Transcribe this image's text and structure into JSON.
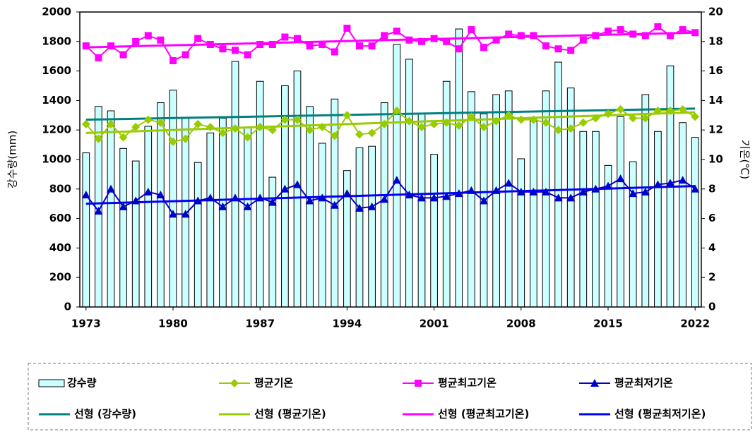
{
  "chart_data": {
    "type": "bar-line",
    "x": [
      1973,
      1974,
      1975,
      1976,
      1977,
      1978,
      1979,
      1980,
      1981,
      1982,
      1983,
      1984,
      1985,
      1986,
      1987,
      1988,
      1989,
      1990,
      1991,
      1992,
      1993,
      1994,
      1995,
      1996,
      1997,
      1998,
      1999,
      2000,
      2001,
      2002,
      2003,
      2004,
      2005,
      2006,
      2007,
      2008,
      2009,
      2010,
      2011,
      2012,
      2013,
      2014,
      2015,
      2016,
      2017,
      2018,
      2019,
      2020,
      2021,
      2022
    ],
    "xlim": [
      1972.5,
      2022.5
    ],
    "xticks": [
      1973,
      1980,
      1987,
      1994,
      2001,
      2008,
      2015,
      2022
    ],
    "ylim": [
      0,
      2000
    ],
    "yticks": [
      0,
      200,
      400,
      600,
      800,
      1000,
      1200,
      1400,
      1600,
      1800,
      2000
    ],
    "y2lim": [
      0,
      20
    ],
    "y2ticks": [
      0,
      2,
      4,
      6,
      8,
      10,
      12,
      14,
      16,
      18,
      20
    ],
    "ylabel": "강수량(mm)",
    "y2label": "기온(℃)",
    "grid": false,
    "series": [
      {
        "name": "강수량",
        "type": "bar",
        "color": "#ccffff",
        "values": [
          1045,
          1360,
          1330,
          1075,
          990,
          1225,
          1385,
          1470,
          1280,
          980,
          1180,
          1280,
          1665,
          1220,
          1530,
          880,
          1500,
          1600,
          1360,
          1110,
          1410,
          925,
          1080,
          1090,
          1385,
          1780,
          1680,
          1310,
          1035,
          1530,
          1885,
          1460,
          1310,
          1440,
          1465,
          1005,
          1260,
          1465,
          1660,
          1485,
          1190,
          1190,
          960,
          1290,
          985,
          1440,
          1190,
          1635,
          1250,
          1150
        ]
      },
      {
        "name": "평균기온",
        "type": "line",
        "axis": "y2",
        "marker": "diamond",
        "color": "#99cc00",
        "values": [
          12.4,
          11.4,
          12.4,
          11.5,
          12.2,
          12.7,
          12.5,
          11.2,
          11.4,
          12.4,
          12.2,
          11.8,
          12.1,
          11.5,
          12.2,
          12.0,
          12.7,
          12.7,
          12.0,
          12.2,
          11.6,
          13.0,
          11.7,
          11.8,
          12.4,
          13.3,
          12.6,
          12.2,
          12.4,
          12.5,
          12.3,
          12.9,
          12.2,
          12.6,
          13.0,
          12.7,
          12.7,
          12.5,
          12.0,
          12.1,
          12.5,
          12.8,
          13.1,
          13.4,
          12.8,
          12.8,
          13.3,
          13.3,
          13.4,
          12.9
        ]
      },
      {
        "name": "평균최고기온",
        "type": "line",
        "axis": "y2",
        "marker": "square",
        "color": "#ff00ff",
        "values": [
          17.7,
          16.9,
          17.7,
          17.1,
          18.0,
          18.4,
          18.1,
          16.7,
          17.1,
          18.2,
          17.8,
          17.5,
          17.4,
          17.1,
          17.8,
          17.8,
          18.3,
          18.2,
          17.7,
          17.8,
          17.3,
          18.9,
          17.7,
          17.7,
          18.4,
          18.7,
          18.1,
          18.0,
          18.2,
          18.0,
          17.5,
          18.8,
          17.6,
          18.1,
          18.5,
          18.4,
          18.4,
          17.7,
          17.5,
          17.4,
          18.1,
          18.4,
          18.7,
          18.8,
          18.5,
          18.4,
          19.0,
          18.4,
          18.8,
          18.6
        ]
      },
      {
        "name": "평균최저기온",
        "type": "line",
        "axis": "y2",
        "marker": "triangle",
        "color": "#0000cc",
        "values": [
          7.6,
          6.5,
          8.0,
          6.8,
          7.2,
          7.8,
          7.6,
          6.3,
          6.3,
          7.2,
          7.4,
          6.8,
          7.4,
          6.8,
          7.4,
          7.1,
          8.0,
          8.3,
          7.2,
          7.4,
          6.9,
          7.7,
          6.7,
          6.8,
          7.3,
          8.6,
          7.6,
          7.4,
          7.4,
          7.5,
          7.7,
          7.9,
          7.2,
          7.9,
          8.4,
          7.8,
          7.8,
          7.8,
          7.4,
          7.4,
          7.8,
          8.0,
          8.2,
          8.7,
          7.7,
          7.8,
          8.3,
          8.4,
          8.6,
          8.0
        ]
      }
    ],
    "trendlines": [
      {
        "name": "선형 (강수량)",
        "color": "#008080",
        "x": [
          1973,
          2022
        ],
        "values": [
          1270,
          1345
        ]
      },
      {
        "name": "선형 (평균기온)",
        "color": "#99cc00",
        "axis": "y2",
        "x": [
          1973,
          2022
        ],
        "values": [
          11.8,
          13.2
        ]
      },
      {
        "name": "선형 (평균최고기온)",
        "color": "#ff00ff",
        "axis": "y2",
        "x": [
          1973,
          2022
        ],
        "values": [
          17.6,
          18.6
        ]
      },
      {
        "name": "선형 (평균최저기온)",
        "color": "#0000ff",
        "axis": "y2",
        "x": [
          1973,
          2022
        ],
        "values": [
          7.0,
          8.2
        ]
      }
    ]
  }
}
